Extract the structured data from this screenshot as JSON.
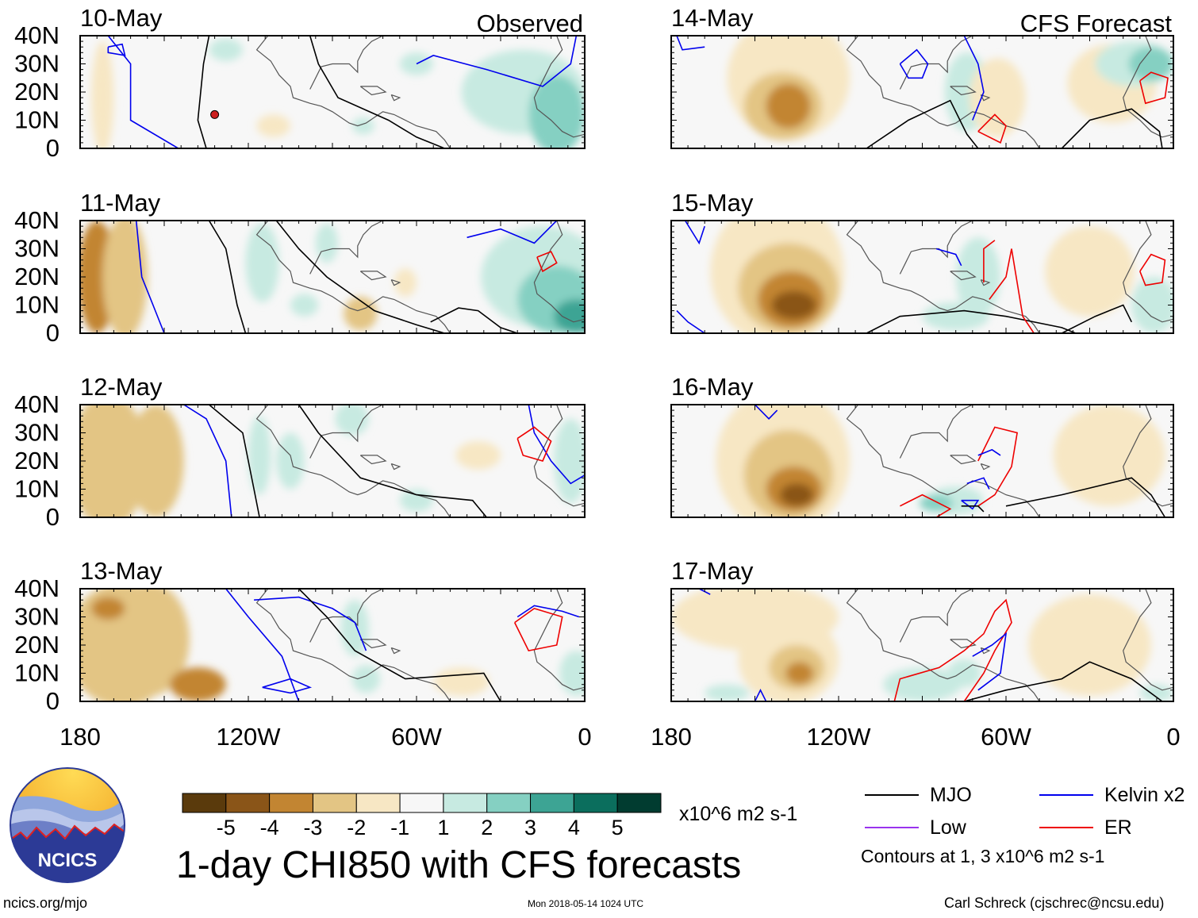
{
  "chart_data": {
    "type": "heatmap",
    "title": "1-day CHI850 with CFS forecasts",
    "units": "x10^6 m2 s-1",
    "contour_note": "Contours at 1, 3 x10^6 m2 s-1",
    "column_headers": [
      "Observed",
      "CFS Forecast"
    ],
    "x_ticks": [
      "180",
      "120W",
      "60W",
      "0"
    ],
    "y_ticks": [
      "0",
      "10N",
      "20N",
      "30N",
      "40N"
    ],
    "xlim_deg_east": [
      180,
      360
    ],
    "ylim_deg": [
      0,
      40
    ],
    "colorbar": {
      "labels": [
        "-5",
        "-4",
        "-3",
        "-2",
        "-1",
        "1",
        "2",
        "3",
        "4",
        "5"
      ],
      "colors": [
        "#5a3a0c",
        "#8a5518",
        "#c28532",
        "#e3c584",
        "#f7e7c4",
        "#f7f7f7",
        "#c7eae1",
        "#85d0c2",
        "#3da494",
        "#0b6e5d",
        "#013c30"
      ]
    },
    "legend": [
      {
        "label": "MJO",
        "color": "#000000"
      },
      {
        "label": "Kelvin x2",
        "color": "#0000ee"
      },
      {
        "label": "Low",
        "color": "#9933ee"
      },
      {
        "label": "ER",
        "color": "#ee0000"
      }
    ],
    "panels": [
      {
        "date": "10-May",
        "column": "Observed"
      },
      {
        "date": "11-May",
        "column": "Observed"
      },
      {
        "date": "12-May",
        "column": "Observed"
      },
      {
        "date": "13-May",
        "column": "Observed"
      },
      {
        "date": "14-May",
        "column": "CFS Forecast"
      },
      {
        "date": "15-May",
        "column": "CFS Forecast"
      },
      {
        "date": "16-May",
        "column": "CFS Forecast"
      },
      {
        "date": "17-May",
        "column": "CFS Forecast"
      }
    ],
    "storm_marker_panel": "10-May"
  },
  "footer": {
    "url": "ncics.org/mjo",
    "timestamp": "Mon 2018-05-14 1024 UTC",
    "credit": "Carl Schreck (cjschrec@ncsu.edu)"
  },
  "logo": {
    "text": "NCICS"
  }
}
